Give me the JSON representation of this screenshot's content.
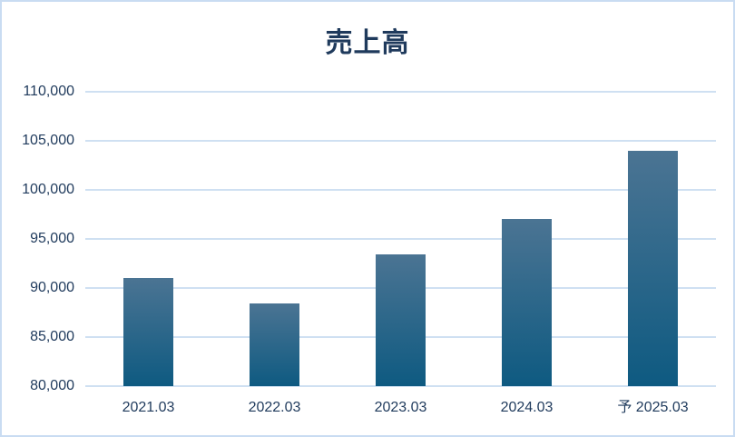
{
  "title": "売上高",
  "colors": {
    "text": "#1f3a5c",
    "gridline": "#cfe0f2",
    "frame_border": "#c9dcf2",
    "bar_gradient_top": "#4b7493",
    "bar_gradient_bottom": "#0e5a81"
  },
  "chart_data": {
    "type": "bar",
    "title": "売上高",
    "categories": [
      "2021.03",
      "2022.03",
      "2023.03",
      "2024.03",
      "予 2025.03"
    ],
    "values": [
      91000,
      88400,
      93400,
      97000,
      104000
    ],
    "xlabel": "",
    "ylabel": "",
    "ylim": [
      80000,
      110000
    ],
    "ytick_step": 5000,
    "ytick_labels": [
      "80,000",
      "85,000",
      "90,000",
      "95,000",
      "100,000",
      "105,000",
      "110,000"
    ],
    "grid": true,
    "legend": false,
    "forecast_prefix": "予"
  }
}
